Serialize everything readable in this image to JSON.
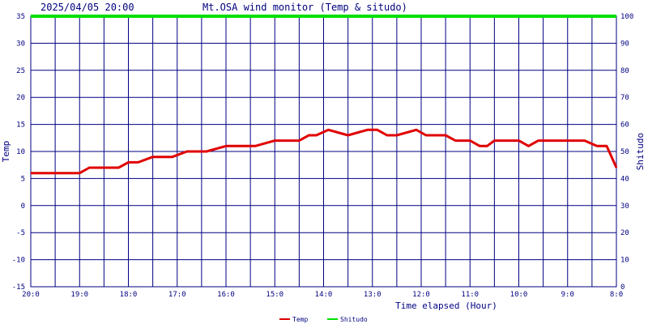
{
  "header": {
    "datetime": "2025/04/05 20:00",
    "title": "Mt.OSA wind monitor (Temp & situdo)"
  },
  "colors": {
    "grid": "#000080",
    "text": "#000080",
    "temp": "#e00000",
    "shitudo": "#00e000"
  },
  "chart_data": {
    "type": "line",
    "xlabel": "Time elapsed (Hour)",
    "ylabel_left": "Temp",
    "ylabel_right": "Shitudo",
    "ylim_left": [
      -15,
      35
    ],
    "ylim_right": [
      0,
      100
    ],
    "y_ticks_left": [
      35,
      30,
      25,
      20,
      15,
      10,
      5,
      0,
      -5,
      -10,
      -15
    ],
    "y_ticks_right": [
      100,
      90,
      80,
      70,
      60,
      50,
      40,
      30,
      20,
      10,
      0
    ],
    "x_tick_labels": [
      "20:0",
      "19:0",
      "18:0",
      "17:0",
      "16:0",
      "15:0",
      "14:0",
      "13:0",
      "12:0",
      "11:0",
      "10:0",
      "9:0",
      "8:0"
    ],
    "x_hours_elapsed_range": [
      0,
      12
    ],
    "grid": true,
    "legend_position": "bottom-center",
    "series": [
      {
        "name": "Temp",
        "axis": "left",
        "x": [
          0,
          1,
          1.2,
          1.8,
          2.0,
          2.2,
          2.5,
          2.9,
          3.2,
          3.6,
          4.0,
          4.2,
          4.6,
          5.0,
          5.2,
          5.5,
          5.7,
          5.85,
          6.1,
          6.5,
          6.9,
          7.1,
          7.3,
          7.5,
          7.9,
          8.1,
          8.3,
          8.5,
          8.7,
          9.0,
          9.2,
          9.35,
          9.5,
          10.0,
          10.2,
          10.4,
          10.6,
          11.0,
          11.35,
          11.6,
          11.8,
          12.0
        ],
        "values": [
          6,
          6,
          7,
          7,
          8,
          8,
          9,
          9,
          10,
          10,
          11,
          11,
          11,
          12,
          12,
          12,
          13,
          13,
          14,
          13,
          14,
          14,
          13,
          13,
          14,
          13,
          13,
          13,
          12,
          12,
          11,
          11,
          12,
          12,
          11,
          12,
          12,
          12,
          12,
          11,
          11,
          7
        ]
      },
      {
        "name": "Shitudo",
        "axis": "right",
        "x": [
          0,
          12
        ],
        "values": [
          100,
          100
        ]
      }
    ]
  }
}
